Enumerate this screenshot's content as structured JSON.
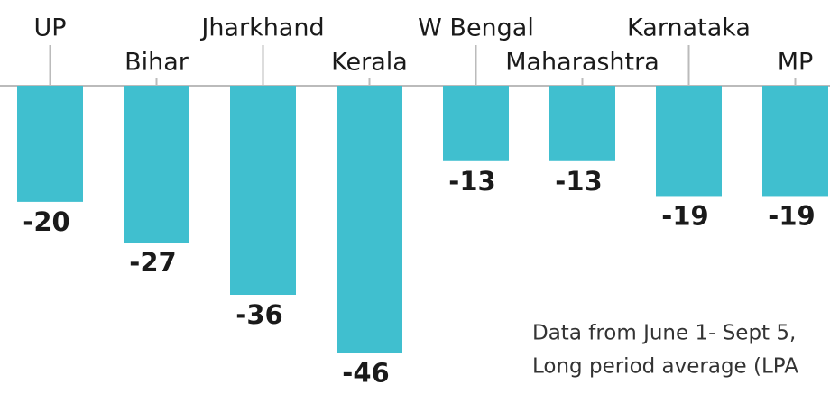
{
  "chart_data": {
    "type": "bar",
    "categories": [
      "UP",
      "Bihar",
      "Jharkhand",
      "Kerala",
      "W Bengal",
      "Maharashtra",
      "Karnataka",
      "MP"
    ],
    "values": [
      -20,
      -27,
      -36,
      -46,
      -13,
      -13,
      -19,
      -19
    ],
    "color": "#40bfcf",
    "ylim": [
      -54,
      0
    ],
    "annotations": [
      "Data from June 1- Sept 5,",
      "Long period average (LPA"
    ]
  }
}
